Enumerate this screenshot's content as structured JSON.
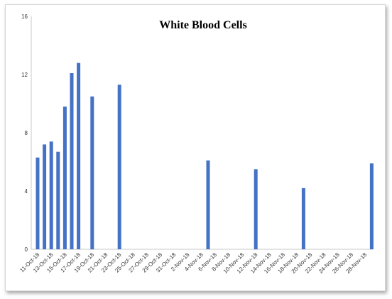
{
  "chart_data": {
    "type": "bar",
    "title": "White Blood Cells",
    "xlabel": "",
    "ylabel": "",
    "ylim": [
      0,
      16
    ],
    "yticks": [
      0,
      4,
      8,
      12,
      16
    ],
    "x_tick_labels": [
      "11-Oct-18",
      "13-Oct-18",
      "15-Oct-18",
      "17-Oct-18",
      "19-Oct-18",
      "21-Oct-18",
      "23-Oct-18",
      "25-Oct-18",
      "27-Oct-18",
      "29-Oct-18",
      "31-Oct-18",
      "2-Nov-18",
      "4-Nov-18",
      "6-Nov-18",
      "8-Nov-18",
      "10-Nov-18",
      "12-Nov-18",
      "14-Nov-18",
      "16-Nov-18",
      "18-Nov-18",
      "20-Nov-18",
      "22-Nov-18",
      "24-Nov-18",
      "26-Nov-18",
      "28-Nov-18"
    ],
    "x_range": [
      "11-Oct-18",
      "29-Nov-18"
    ],
    "bar_color": "#4472c4",
    "grid": false,
    "points": [
      {
        "date": "11-Oct-18",
        "value": 6.3
      },
      {
        "date": "12-Oct-18",
        "value": 7.2
      },
      {
        "date": "13-Oct-18",
        "value": 7.4
      },
      {
        "date": "14-Oct-18",
        "value": 6.7
      },
      {
        "date": "15-Oct-18",
        "value": 9.8
      },
      {
        "date": "16-Oct-18",
        "value": 12.1
      },
      {
        "date": "17-Oct-18",
        "value": 12.8
      },
      {
        "date": "19-Oct-18",
        "value": 10.5
      },
      {
        "date": "23-Oct-18",
        "value": 11.3
      },
      {
        "date": "5-Nov-18",
        "value": 6.1
      },
      {
        "date": "12-Nov-18",
        "value": 5.5
      },
      {
        "date": "19-Nov-18",
        "value": 4.2
      },
      {
        "date": "29-Nov-18",
        "value": 5.9
      }
    ]
  }
}
